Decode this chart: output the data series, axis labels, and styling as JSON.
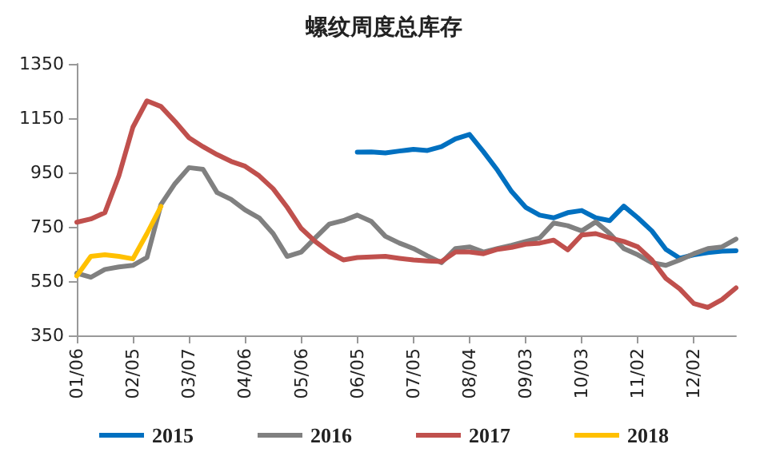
{
  "chart_data": {
    "type": "line",
    "title": "螺纹周度总库存",
    "categories": [
      "01/06",
      null,
      null,
      null,
      "02/05",
      null,
      null,
      null,
      "03/07",
      null,
      null,
      null,
      "04/06",
      null,
      null,
      null,
      "05/06",
      null,
      null,
      null,
      "06/05",
      null,
      null,
      null,
      "07/05",
      null,
      null,
      null,
      "08/04",
      null,
      null,
      null,
      "09/03",
      null,
      null,
      null,
      "10/03",
      null,
      null,
      null,
      "11/02",
      null,
      null,
      null,
      "12/02",
      null,
      null,
      null
    ],
    "series": [
      {
        "name": "2015",
        "color": "#0070c0",
        "values": [
          null,
          null,
          null,
          null,
          null,
          null,
          null,
          null,
          null,
          null,
          null,
          null,
          null,
          null,
          null,
          null,
          null,
          null,
          null,
          null,
          1025,
          1026,
          1022,
          1029,
          1035,
          1031,
          1045,
          1074,
          1090,
          1026,
          958,
          880,
          822,
          793,
          783,
          802,
          810,
          783,
          773,
          826,
          783,
          735,
          667,
          634,
          647,
          655,
          660,
          662
        ]
      },
      {
        "name": "2016",
        "color": "#808080",
        "values": [
          579,
          564,
          593,
          602,
          608,
          637,
          832,
          909,
          968,
          962,
          876,
          851,
          812,
          783,
          725,
          641,
          657,
          709,
          760,
          773,
          793,
          770,
          715,
          690,
          670,
          643,
          618,
          670,
          676,
          657,
          670,
          682,
          696,
          709,
          764,
          754,
          735,
          768,
          725,
          670,
          647,
          618,
          608,
          628,
          651,
          670,
          676,
          705
        ]
      },
      {
        "name": "2017",
        "color": "#c0504d",
        "values": [
          767,
          779,
          802,
          938,
          1117,
          1214,
          1193,
          1138,
          1078,
          1045,
          1016,
          991,
          973,
          938,
          890,
          822,
          744,
          696,
          657,
          628,
          637,
          639,
          641,
          634,
          628,
          624,
          622,
          657,
          657,
          651,
          667,
          674,
          686,
          690,
          701,
          665,
          720,
          725,
          709,
          696,
          676,
          628,
          560,
          521,
          467,
          453,
          482,
          525
        ]
      },
      {
        "name": "2018",
        "color": "#ffc000",
        "values": [
          569,
          641,
          647,
          641,
          632,
          725,
          825,
          null,
          null,
          null,
          null,
          null,
          null,
          null,
          null,
          null,
          null,
          null,
          null,
          null,
          null,
          null,
          null,
          null,
          null,
          null,
          null,
          null,
          null,
          null,
          null,
          null,
          null,
          null,
          null,
          null,
          null,
          null,
          null,
          null,
          null,
          null,
          null,
          null,
          null,
          null,
          null,
          null
        ]
      }
    ],
    "ylim": [
      350,
      1350
    ],
    "yticks": [
      350,
      550,
      750,
      950,
      1150,
      1350
    ],
    "grid": false,
    "legend": "bottom",
    "marker": "none",
    "line_style": "solid"
  }
}
